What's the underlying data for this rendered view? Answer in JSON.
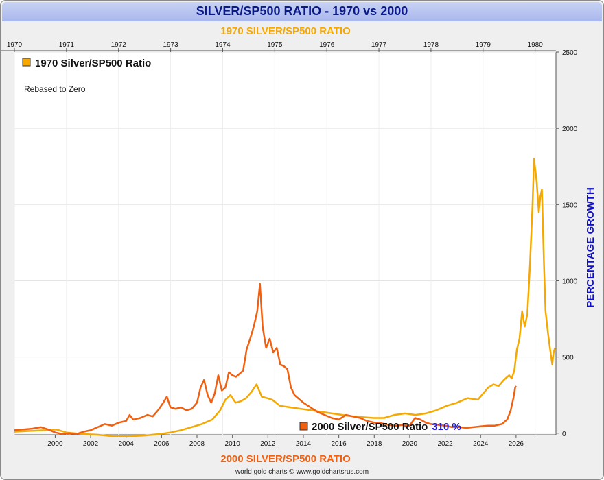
{
  "title": "SILVER/SP500 RATIO - 1970 vs 2000",
  "footer": "world gold charts © www.goldchartsrus.com",
  "colors": {
    "series_1970": "#f5a800",
    "series_2000": "#f06010",
    "axis_title": "#1010cc",
    "ratio_text": "#1a1adf",
    "top_label": "#f5a800",
    "bottom_label": "#f06010"
  },
  "chart_data": {
    "type": "line",
    "top_axis_label": "1970 SILVER/SP500 RATIO",
    "bottom_axis_label": "2000 SILVER/SP500 RATIO",
    "ylabel": "PERCENTAGE GROWTH",
    "ylim": [
      -10,
      2500
    ],
    "y_ticks": [
      0,
      500,
      1000,
      1500,
      2000,
      2500
    ],
    "top_x_ticks": [
      "1970",
      "1971",
      "1972",
      "1973",
      "1974",
      "1975",
      "1976",
      "1977",
      "1978",
      "1979",
      "1980"
    ],
    "bottom_x_ticks": [
      "2000",
      "2002",
      "2004",
      "2006",
      "2008",
      "2010",
      "2012",
      "2014",
      "2016",
      "2018",
      "2020",
      "2022",
      "2024",
      "2026"
    ],
    "legend_1970": "1970 Silver/SP500 Ratio",
    "legend_note": "Rebased to Zero",
    "legend_2000": "2000 Silver/SP500 Ratio",
    "legend_2000_value": "310 %",
    "series": [
      {
        "name": "1970 Silver/SP500 Ratio",
        "x_axis": "top",
        "points": [
          [
            1970.0,
            10
          ],
          [
            1970.3,
            15
          ],
          [
            1970.6,
            20
          ],
          [
            1970.8,
            25
          ],
          [
            1971.0,
            5
          ],
          [
            1971.3,
            -5
          ],
          [
            1971.6,
            -10
          ],
          [
            1971.9,
            -20
          ],
          [
            1972.2,
            -20
          ],
          [
            1972.5,
            -15
          ],
          [
            1972.8,
            -5
          ],
          [
            1973.0,
            5
          ],
          [
            1973.2,
            20
          ],
          [
            1973.4,
            40
          ],
          [
            1973.6,
            60
          ],
          [
            1973.8,
            90
          ],
          [
            1973.95,
            150
          ],
          [
            1974.05,
            220
          ],
          [
            1974.15,
            250
          ],
          [
            1974.25,
            200
          ],
          [
            1974.35,
            210
          ],
          [
            1974.45,
            230
          ],
          [
            1974.55,
            270
          ],
          [
            1974.65,
            320
          ],
          [
            1974.75,
            240
          ],
          [
            1974.85,
            230
          ],
          [
            1974.95,
            220
          ],
          [
            1975.1,
            180
          ],
          [
            1975.3,
            170
          ],
          [
            1975.5,
            160
          ],
          [
            1975.7,
            150
          ],
          [
            1975.9,
            140
          ],
          [
            1976.1,
            130
          ],
          [
            1976.3,
            120
          ],
          [
            1976.5,
            110
          ],
          [
            1976.7,
            105
          ],
          [
            1976.9,
            100
          ],
          [
            1977.1,
            100
          ],
          [
            1977.3,
            120
          ],
          [
            1977.5,
            130
          ],
          [
            1977.7,
            120
          ],
          [
            1977.9,
            130
          ],
          [
            1978.1,
            150
          ],
          [
            1978.3,
            180
          ],
          [
            1978.5,
            200
          ],
          [
            1978.7,
            230
          ],
          [
            1978.9,
            220
          ],
          [
            1979.0,
            260
          ],
          [
            1979.1,
            300
          ],
          [
            1979.2,
            320
          ],
          [
            1979.3,
            310
          ],
          [
            1979.4,
            350
          ],
          [
            1979.5,
            380
          ],
          [
            1979.55,
            360
          ],
          [
            1979.6,
            410
          ],
          [
            1979.65,
            550
          ],
          [
            1979.7,
            620
          ],
          [
            1979.75,
            800
          ],
          [
            1979.8,
            700
          ],
          [
            1979.85,
            780
          ],
          [
            1979.9,
            1100
          ],
          [
            1979.95,
            1500
          ],
          [
            1979.98,
            1800
          ],
          [
            1980.03,
            1650
          ],
          [
            1980.07,
            1450
          ],
          [
            1980.1,
            1550
          ],
          [
            1980.13,
            1600
          ],
          [
            1980.17,
            1100
          ],
          [
            1980.2,
            800
          ],
          [
            1980.25,
            650
          ],
          [
            1980.3,
            520
          ],
          [
            1980.33,
            450
          ],
          [
            1980.35,
            520
          ],
          [
            1980.38,
            560
          ]
        ]
      },
      {
        "name": "2000 Silver/SP500 Ratio",
        "x_axis": "bottom",
        "points": [
          [
            1997.7,
            20
          ],
          [
            1998.2,
            25
          ],
          [
            1998.7,
            30
          ],
          [
            1999.2,
            40
          ],
          [
            1999.6,
            25
          ],
          [
            2000.0,
            5
          ],
          [
            2000.4,
            -5
          ],
          [
            2000.8,
            0
          ],
          [
            2001.2,
            -5
          ],
          [
            2001.6,
            10
          ],
          [
            2002.0,
            20
          ],
          [
            2002.4,
            40
          ],
          [
            2002.8,
            60
          ],
          [
            2003.2,
            50
          ],
          [
            2003.6,
            70
          ],
          [
            2004.0,
            80
          ],
          [
            2004.2,
            120
          ],
          [
            2004.4,
            90
          ],
          [
            2004.8,
            100
          ],
          [
            2005.2,
            120
          ],
          [
            2005.5,
            110
          ],
          [
            2005.8,
            150
          ],
          [
            2006.1,
            200
          ],
          [
            2006.3,
            240
          ],
          [
            2006.5,
            170
          ],
          [
            2006.8,
            160
          ],
          [
            2007.1,
            170
          ],
          [
            2007.4,
            150
          ],
          [
            2007.7,
            160
          ],
          [
            2008.0,
            200
          ],
          [
            2008.2,
            300
          ],
          [
            2008.4,
            350
          ],
          [
            2008.6,
            250
          ],
          [
            2008.8,
            200
          ],
          [
            2009.0,
            260
          ],
          [
            2009.2,
            380
          ],
          [
            2009.4,
            280
          ],
          [
            2009.6,
            300
          ],
          [
            2009.8,
            400
          ],
          [
            2010.0,
            380
          ],
          [
            2010.2,
            370
          ],
          [
            2010.4,
            390
          ],
          [
            2010.6,
            410
          ],
          [
            2010.8,
            550
          ],
          [
            2011.0,
            620
          ],
          [
            2011.2,
            700
          ],
          [
            2011.4,
            800
          ],
          [
            2011.55,
            980
          ],
          [
            2011.7,
            700
          ],
          [
            2011.9,
            560
          ],
          [
            2012.1,
            620
          ],
          [
            2012.3,
            530
          ],
          [
            2012.5,
            560
          ],
          [
            2012.7,
            450
          ],
          [
            2012.9,
            440
          ],
          [
            2013.1,
            420
          ],
          [
            2013.3,
            300
          ],
          [
            2013.5,
            250
          ],
          [
            2013.7,
            230
          ],
          [
            2014.0,
            200
          ],
          [
            2014.4,
            170
          ],
          [
            2014.8,
            140
          ],
          [
            2015.2,
            120
          ],
          [
            2015.6,
            100
          ],
          [
            2016.0,
            90
          ],
          [
            2016.4,
            120
          ],
          [
            2016.8,
            110
          ],
          [
            2017.2,
            100
          ],
          [
            2017.6,
            80
          ],
          [
            2018.0,
            70
          ],
          [
            2018.4,
            65
          ],
          [
            2018.8,
            55
          ],
          [
            2019.2,
            50
          ],
          [
            2019.6,
            55
          ],
          [
            2020.0,
            50
          ],
          [
            2020.3,
            100
          ],
          [
            2020.6,
            90
          ],
          [
            2020.9,
            70
          ],
          [
            2021.2,
            60
          ],
          [
            2021.6,
            55
          ],
          [
            2022.0,
            50
          ],
          [
            2022.4,
            40
          ],
          [
            2022.8,
            40
          ],
          [
            2023.2,
            35
          ],
          [
            2023.6,
            40
          ],
          [
            2024.0,
            45
          ],
          [
            2024.4,
            50
          ],
          [
            2024.8,
            50
          ],
          [
            2025.2,
            60
          ],
          [
            2025.5,
            90
          ],
          [
            2025.7,
            150
          ],
          [
            2025.85,
            230
          ],
          [
            2025.95,
            300
          ],
          [
            2026.0,
            310
          ]
        ]
      }
    ]
  }
}
